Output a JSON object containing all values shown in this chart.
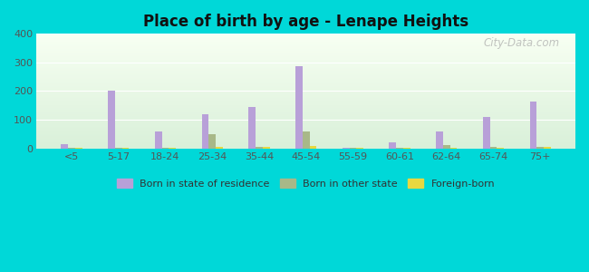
{
  "title": "Place of birth by age - Lenape Heights",
  "categories": [
    "<5",
    "5-17",
    "18-24",
    "25-34",
    "35-44",
    "45-54",
    "55-59",
    "60-61",
    "62-64",
    "65-74",
    "75+"
  ],
  "born_in_state": [
    15,
    200,
    58,
    120,
    143,
    287,
    3,
    22,
    60,
    110,
    163
  ],
  "born_other_state": [
    3,
    3,
    3,
    48,
    5,
    60,
    2,
    3,
    12,
    4,
    4
  ],
  "foreign_born": [
    3,
    3,
    3,
    4,
    5,
    8,
    2,
    3,
    3,
    3,
    5
  ],
  "bar_colors": {
    "born_in_state": "#b8a0d8",
    "born_other_state": "#a8b888",
    "foreign_born": "#e8d840"
  },
  "ylim": [
    0,
    400
  ],
  "yticks": [
    0,
    100,
    200,
    300,
    400
  ],
  "outer_bg": "#00d8d8",
  "legend_labels": [
    "Born in state of residence",
    "Born in other state",
    "Foreign-born"
  ],
  "watermark": "City-Data.com",
  "bar_width": 0.15,
  "figsize": [
    6.5,
    3.0
  ],
  "dpi": 100
}
